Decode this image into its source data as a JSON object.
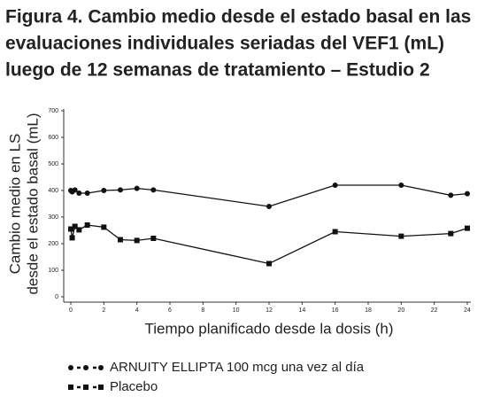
{
  "chart_data": {
    "type": "line",
    "title": [
      "Figura 4. Cambio medio desde el estado basal en las",
      "evaluaciones individuales seriadas del VEF1  (mL)",
      "luego de 12 semanas de tratamiento – Estudio 2"
    ],
    "y_label": [
      "Cambio medio en LS",
      "desde el estado basal (mL)"
    ],
    "x_label": "Tiempo planificado desde la dosis (h)",
    "x": [
      0,
      0.083,
      0.25,
      0.5,
      1,
      2,
      3,
      4,
      5,
      12,
      16,
      20,
      23,
      24
    ],
    "series": [
      {
        "name": "ARNUITY ELLIPTA 100 mcg una vez al día",
        "color": "#111111",
        "marker": "circle",
        "values": [
          400,
          395,
          402,
          390,
          390,
          400,
          402,
          408,
          402,
          340,
          420,
          420,
          382,
          388
        ]
      },
      {
        "name": "Placebo",
        "color": "#111111",
        "marker": "square",
        "values": [
          255,
          222,
          265,
          252,
          270,
          262,
          215,
          212,
          220,
          125,
          245,
          228,
          238,
          258
        ]
      }
    ],
    "xlim": [
      0,
      24
    ],
    "xticks": [
      0,
      2,
      4,
      6,
      8,
      10,
      12,
      14,
      16,
      18,
      20,
      22,
      24
    ],
    "ylim": [
      0,
      700
    ],
    "yticks": [
      0,
      100,
      200,
      300,
      400,
      500,
      600,
      700
    ]
  }
}
